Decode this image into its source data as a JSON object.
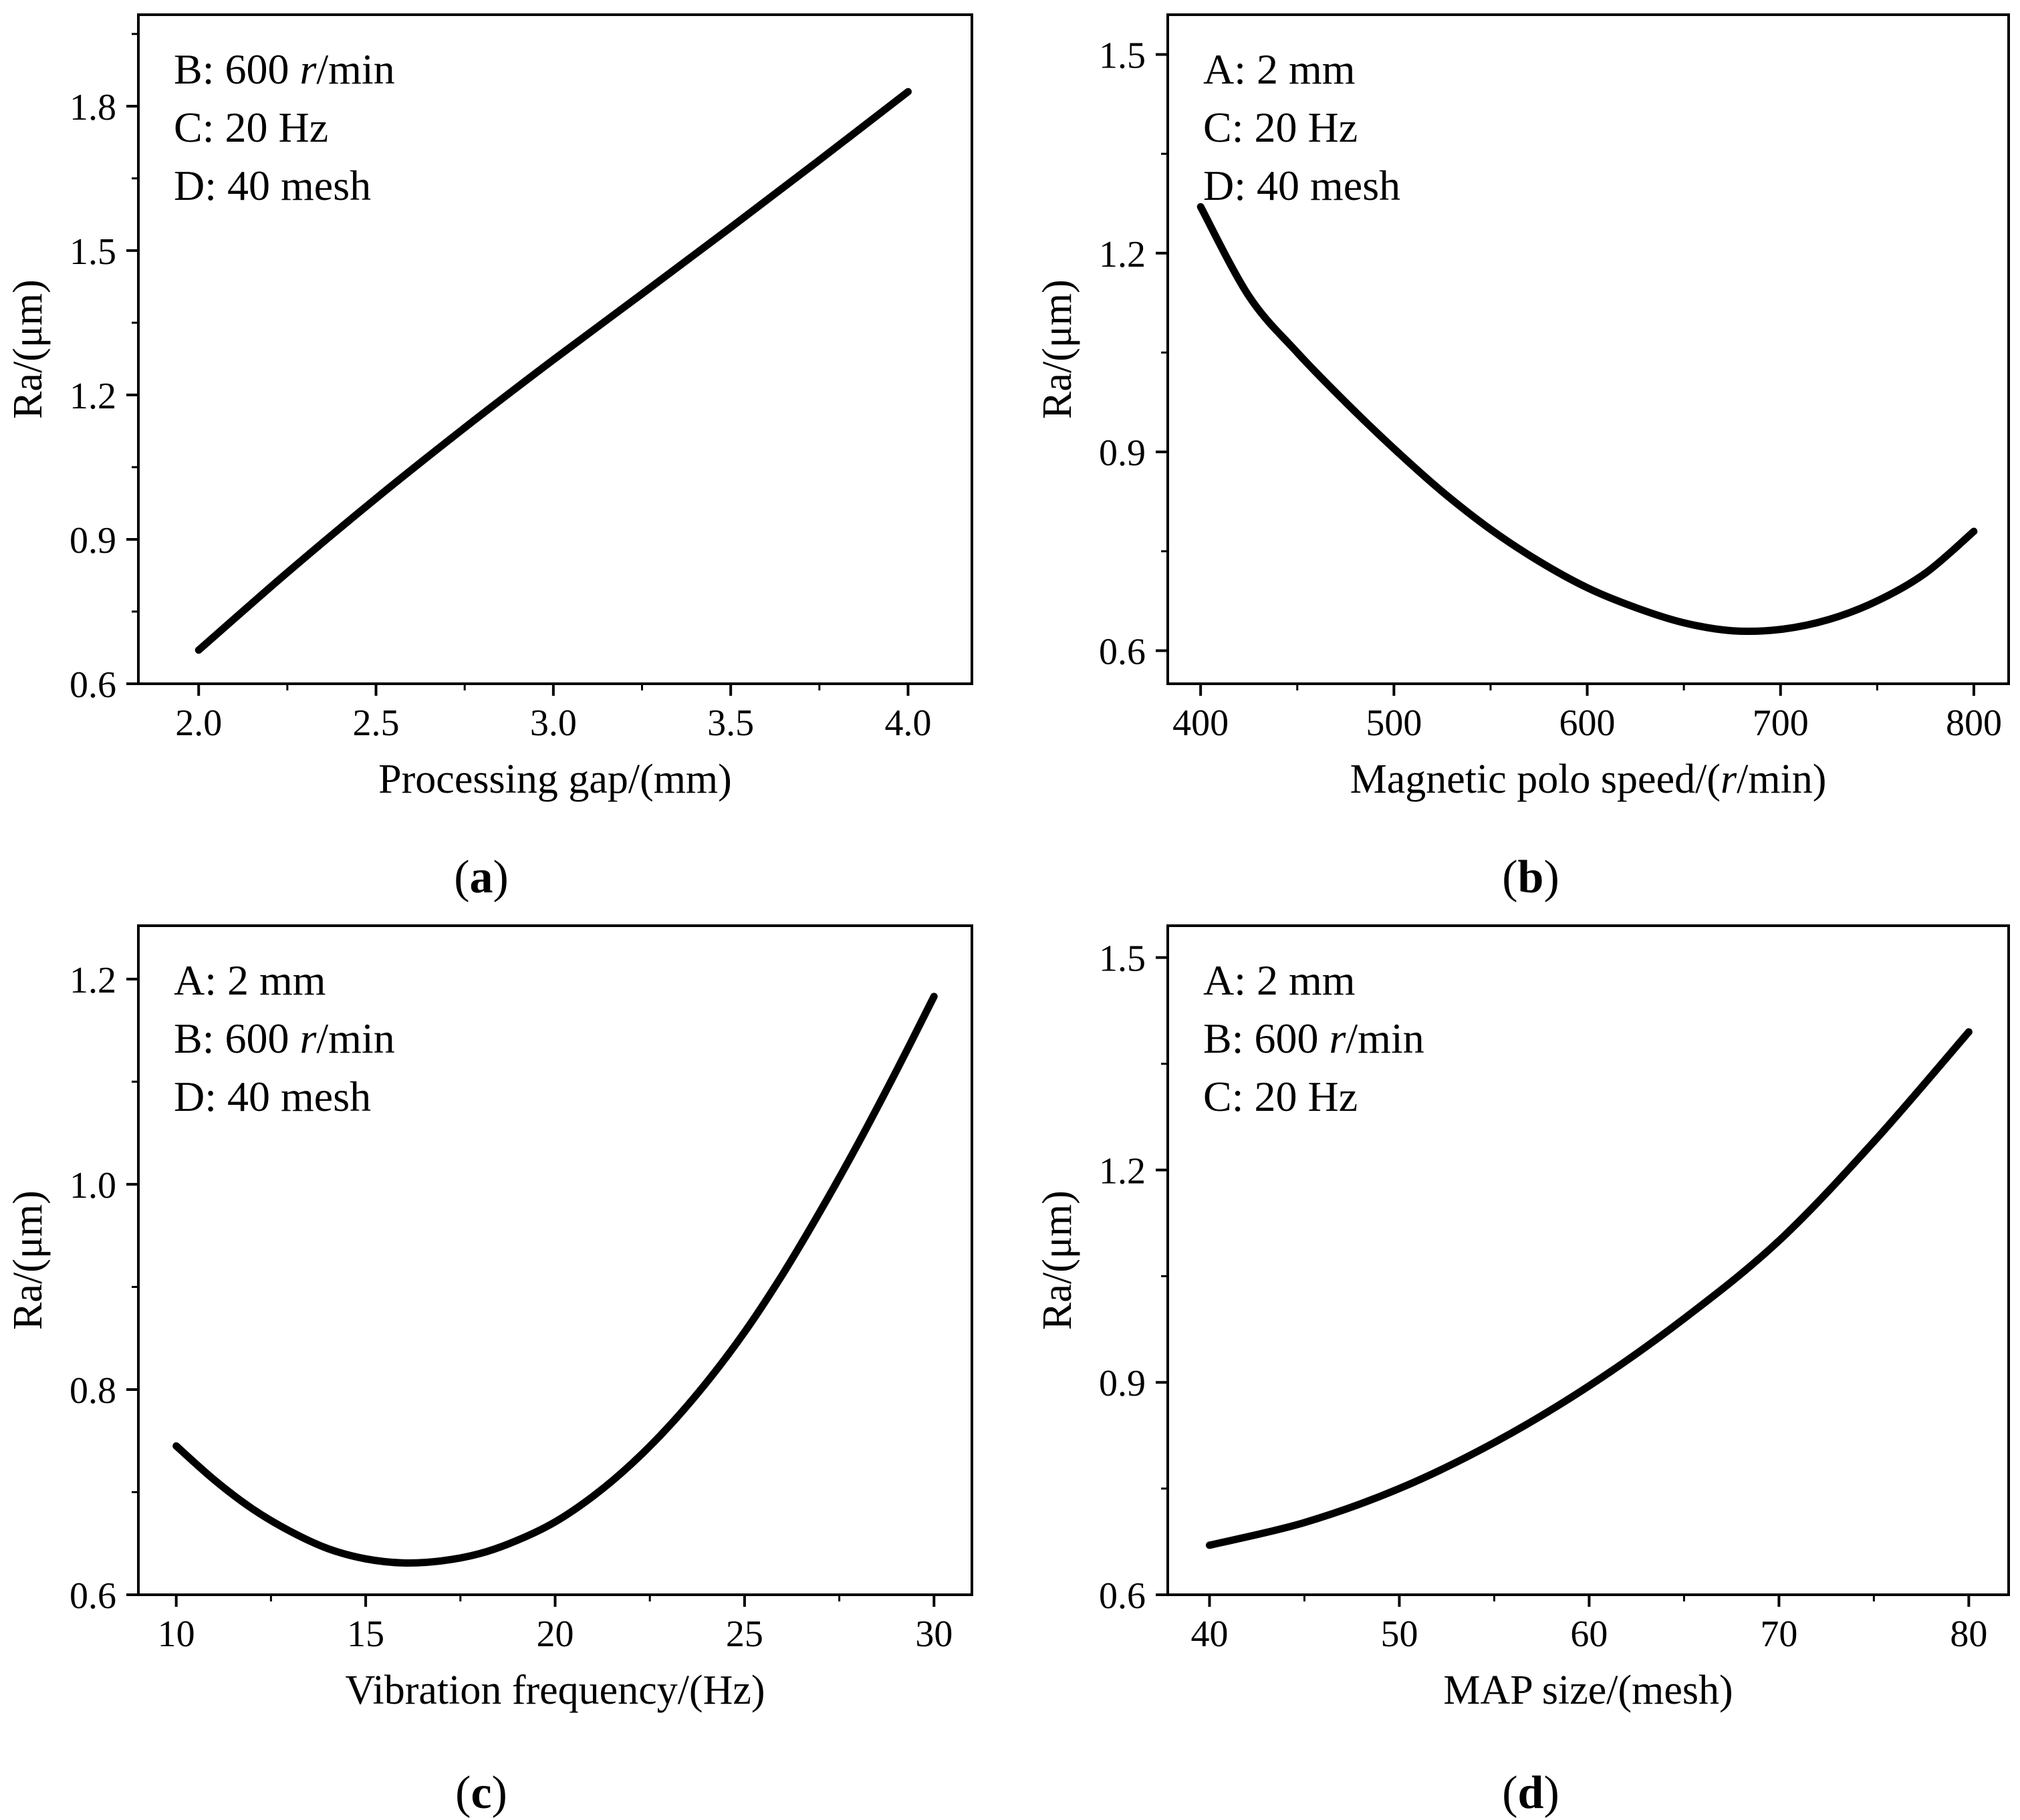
{
  "figure": {
    "panels": [
      {
        "id": "a",
        "label_open": "(",
        "label": "a",
        "label_close": ")",
        "annotations": [
          [
            {
              "t": "B: 600 "
            },
            {
              "t": "r",
              "i": true
            },
            {
              "t": "/min"
            }
          ],
          [
            {
              "t": "C: 20 Hz"
            }
          ],
          [
            {
              "t": "D: 40 mesh"
            }
          ]
        ]
      },
      {
        "id": "b",
        "label_open": "(",
        "label": "b",
        "label_close": ")",
        "annotations": [
          [
            {
              "t": "A: 2 mm"
            }
          ],
          [
            {
              "t": "C: 20 Hz"
            }
          ],
          [
            {
              "t": "D: 40 mesh"
            }
          ]
        ]
      },
      {
        "id": "c",
        "label_open": "(",
        "label": "c",
        "label_close": ")",
        "annotations": [
          [
            {
              "t": "A: 2 mm"
            }
          ],
          [
            {
              "t": "B: 600 "
            },
            {
              "t": "r",
              "i": true
            },
            {
              "t": "/min"
            }
          ],
          [
            {
              "t": "D: 40 mesh"
            }
          ]
        ]
      },
      {
        "id": "d",
        "label_open": "(",
        "label": "d",
        "label_close": ")",
        "annotations": [
          [
            {
              "t": "A: 2 mm"
            }
          ],
          [
            {
              "t": "B: 600 "
            },
            {
              "t": "r",
              "i": true
            },
            {
              "t": "/min"
            }
          ],
          [
            {
              "t": "C: 20 Hz"
            }
          ]
        ]
      }
    ]
  },
  "chart_data": [
    {
      "type": "line",
      "title": "(a)",
      "xlabel": "Processing gap/(mm)",
      "xlabel_parts": [
        {
          "t": "Processing gap/(mm)"
        }
      ],
      "ylabel": "Ra/(μm)",
      "xlim": [
        1.83,
        4.18
      ],
      "ylim": [
        0.6,
        1.99
      ],
      "xticks": [
        2.0,
        2.5,
        3.0,
        3.5,
        4.0
      ],
      "xtick_labels": [
        "2.0",
        "2.5",
        "3.0",
        "3.5",
        "4.0"
      ],
      "xminor": 0.25,
      "yticks": [
        0.6,
        0.9,
        1.2,
        1.5,
        1.8
      ],
      "ytick_labels": [
        "0.6",
        "0.9",
        "1.2",
        "1.5",
        "1.8"
      ],
      "yminor": 0.15,
      "grid": false,
      "series": [
        {
          "name": "Ra",
          "x": [
            2.0,
            2.25,
            2.5,
            2.75,
            3.0,
            3.25,
            3.5,
            3.75,
            4.0
          ],
          "values": [
            0.67,
            0.831,
            0.985,
            1.132,
            1.273,
            1.41,
            1.548,
            1.688,
            1.83
          ]
        }
      ]
    },
    {
      "type": "line",
      "title": "(b)",
      "xlabel": "Magnetic polo speed/(r/min)",
      "xlabel_parts": [
        {
          "t": "Magnetic polo speed/("
        },
        {
          "t": "r",
          "i": true
        },
        {
          "t": "/min)"
        }
      ],
      "ylabel": "Ra/(μm)",
      "xlim": [
        383,
        818
      ],
      "ylim": [
        0.55,
        1.56
      ],
      "xticks": [
        400,
        500,
        600,
        700,
        800
      ],
      "xtick_labels": [
        "400",
        "500",
        "600",
        "700",
        "800"
      ],
      "xminor": 50,
      "yticks": [
        0.6,
        0.9,
        1.2,
        1.5
      ],
      "ytick_labels": [
        "0.6",
        "0.9",
        "1.2",
        "1.5"
      ],
      "yminor": 0.15,
      "grid": false,
      "series": [
        {
          "name": "Ra",
          "x": [
            400,
            425,
            450,
            475,
            500,
            525,
            550,
            575,
            600,
            625,
            650,
            675,
            700,
            725,
            750,
            775,
            800
          ],
          "values": [
            1.27,
            1.135,
            1.05,
            0.975,
            0.905,
            0.84,
            0.783,
            0.735,
            0.695,
            0.665,
            0.642,
            0.63,
            0.632,
            0.647,
            0.675,
            0.717,
            0.78
          ]
        }
      ]
    },
    {
      "type": "line",
      "title": "(c)",
      "xlabel": "Vibration frequency/(Hz)",
      "xlabel_parts": [
        {
          "t": "Vibration frequency/(Hz)"
        }
      ],
      "ylabel": "Ra/(μm)",
      "xlim": [
        9.0,
        31.0
      ],
      "ylim": [
        0.6,
        1.252
      ],
      "xticks": [
        10,
        15,
        20,
        25,
        30
      ],
      "xtick_labels": [
        "10",
        "15",
        "20",
        "25",
        "30"
      ],
      "xminor": 2.5,
      "yticks": [
        0.6,
        0.8,
        1.0,
        1.2
      ],
      "ytick_labels": [
        "0.6",
        "0.8",
        "1.0",
        "1.2"
      ],
      "yminor": 0.1,
      "grid": false,
      "series": [
        {
          "name": "Ra",
          "x": [
            10,
            11,
            12,
            13,
            14,
            15,
            16,
            17,
            18,
            19,
            20,
            21,
            22,
            23,
            24,
            25,
            26,
            27,
            28,
            29,
            30
          ],
          "values": [
            0.745,
            0.712,
            0.684,
            0.662,
            0.645,
            0.635,
            0.631,
            0.633,
            0.64,
            0.653,
            0.671,
            0.696,
            0.727,
            0.764,
            0.807,
            0.856,
            0.912,
            0.974,
            1.04,
            1.11,
            1.183
          ]
        }
      ]
    },
    {
      "type": "line",
      "title": "(d)",
      "xlabel": "MAP size/(mesh)",
      "xlabel_parts": [
        {
          "t": "MAP size/(mesh)"
        }
      ],
      "ylabel": "Ra/(μm)",
      "xlim": [
        37.8,
        82.1
      ],
      "ylim": [
        0.6,
        1.545
      ],
      "xticks": [
        40,
        50,
        60,
        70,
        80
      ],
      "xtick_labels": [
        "40",
        "50",
        "60",
        "70",
        "80"
      ],
      "xminor": 5,
      "yticks": [
        0.6,
        0.9,
        1.2,
        1.5
      ],
      "ytick_labels": [
        "0.6",
        "0.9",
        "1.2",
        "1.5"
      ],
      "yminor": 0.15,
      "grid": false,
      "series": [
        {
          "name": "Ra",
          "x": [
            40,
            45,
            50,
            55,
            60,
            65,
            70,
            75,
            80
          ],
          "values": [
            0.67,
            0.702,
            0.75,
            0.815,
            0.895,
            0.99,
            1.1,
            1.24,
            1.395
          ]
        }
      ]
    }
  ]
}
